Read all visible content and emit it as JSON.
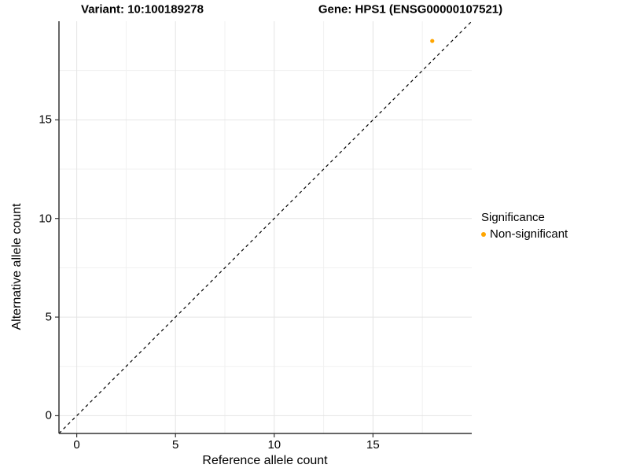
{
  "chart_data": {
    "type": "scatter",
    "title_left": "Variant: 10:100189278",
    "title_right": "Gene: HPS1 (ENSG00000107521)",
    "xlabel": "Reference allele count",
    "ylabel": "Alternative allele count",
    "xlim": [
      -0.9,
      20.0
    ],
    "ylim": [
      -0.9,
      20.0
    ],
    "x_ticks": [
      0,
      5,
      10,
      15
    ],
    "y_ticks": [
      0,
      5,
      10,
      15
    ],
    "x_minor_ticks": [
      2.5,
      7.5,
      12.5,
      17.5
    ],
    "y_minor_ticks": [
      2.5,
      7.5,
      12.5,
      17.5
    ],
    "grid": "major-and-minor",
    "identity_line": {
      "type": "abline",
      "slope": 1,
      "intercept": 0,
      "style": "dashed",
      "color": "#000000"
    },
    "series": [
      {
        "name": "Non-significant",
        "color": "#FFA500",
        "points": [
          {
            "x": 18,
            "y": 19
          }
        ]
      }
    ],
    "legend": {
      "title": "Significance",
      "position": "right",
      "entries": [
        {
          "label": "Non-significant",
          "color": "#FFA500"
        }
      ]
    },
    "colors": {
      "background": "#FFFFFF",
      "grid_major": "#E4E4E4",
      "grid_minor": "#F1F1F1",
      "axis_line": "#333333",
      "text": "#000000",
      "point": "#FFA500"
    }
  }
}
